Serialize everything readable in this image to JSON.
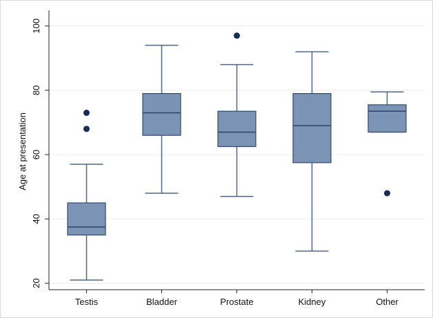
{
  "chart_data": {
    "type": "box",
    "title": "",
    "xlabel": "",
    "ylabel": "Age at presentation",
    "ylim": [
      18,
      104
    ],
    "yticks": [
      20,
      40,
      60,
      80,
      100
    ],
    "grid": true,
    "legend": "none",
    "colors": {
      "box_fill": "#7b93b4",
      "box_stroke": "#2f4a6b",
      "whisker": "#4e6688",
      "outlier": "#1a2d5a",
      "grid": "#ececec",
      "axis": "#222222"
    },
    "categories": [
      "Testis",
      "Bladder",
      "Prostate",
      "Kidney",
      "Other"
    ],
    "boxes": [
      {
        "category": "Testis",
        "min": 21,
        "q1": 35,
        "median": 37.5,
        "q3": 45,
        "max": 57,
        "outliers": [
          73,
          68
        ]
      },
      {
        "category": "Bladder",
        "min": 48,
        "q1": 66,
        "median": 73,
        "q3": 79,
        "max": 94,
        "outliers": []
      },
      {
        "category": "Prostate",
        "min": 47,
        "q1": 62.5,
        "median": 67,
        "q3": 73.5,
        "max": 88,
        "outliers": [
          97
        ]
      },
      {
        "category": "Kidney",
        "min": 30,
        "q1": 57.5,
        "median": 69,
        "q3": 79,
        "max": 92,
        "outliers": []
      },
      {
        "category": "Other",
        "min": 67,
        "q1": 67,
        "median": 73.5,
        "q3": 75.5,
        "max": 79.5,
        "outliers": [
          48
        ]
      }
    ]
  }
}
